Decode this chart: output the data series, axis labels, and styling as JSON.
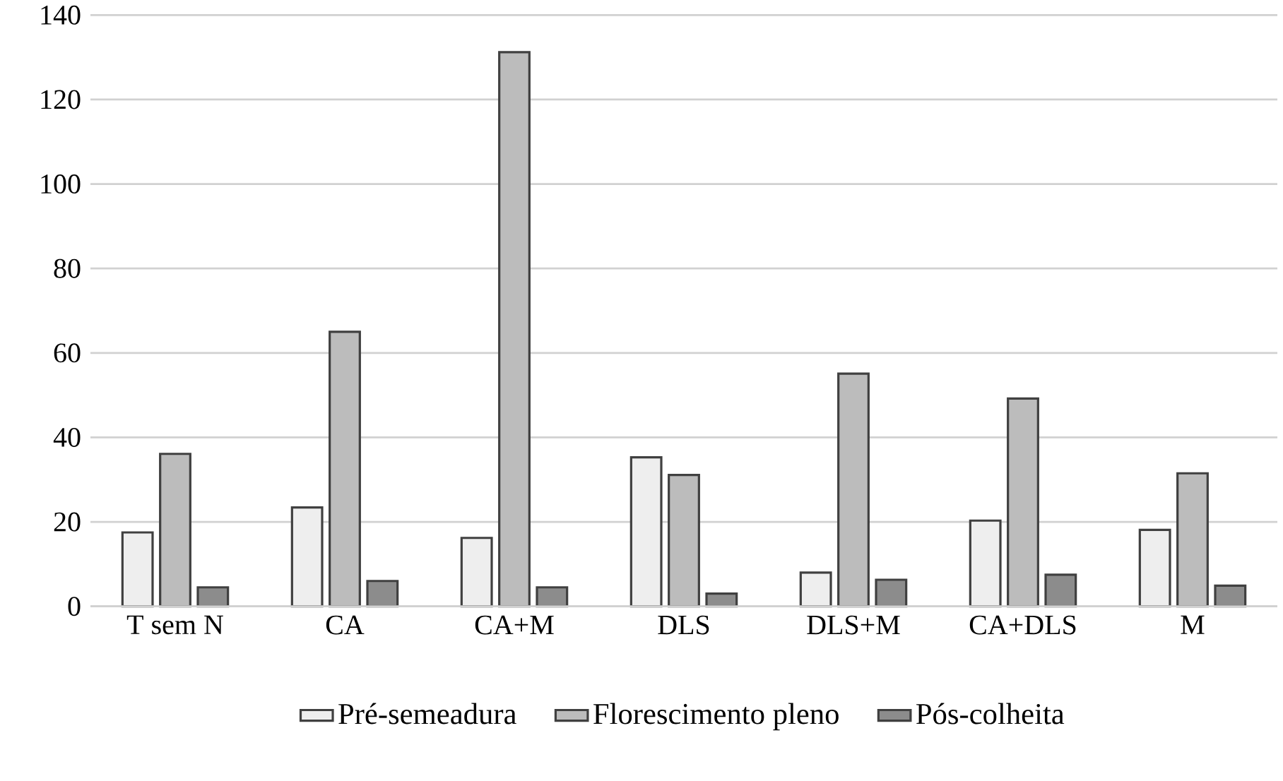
{
  "chart_data": {
    "type": "bar",
    "categories": [
      "T sem N",
      "CA",
      "CA+M",
      "DLS",
      "DLS+M",
      "CA+DLS",
      "M"
    ],
    "series": [
      {
        "name": "Pré-semeadura",
        "color": "#eeeeee",
        "values": [
          17.5,
          23.4,
          16.2,
          35.3,
          8.0,
          20.3,
          18.1
        ]
      },
      {
        "name": "Florescimento pleno",
        "color": "#bcbcbc",
        "values": [
          36.1,
          65.0,
          131.2,
          31.1,
          55.1,
          49.2,
          31.5
        ]
      },
      {
        "name": "Pós-colheita",
        "color": "#8c8c8c",
        "values": [
          4.5,
          6.0,
          4.5,
          3.0,
          6.3,
          7.5,
          4.9
        ]
      }
    ],
    "ylim": [
      0,
      140
    ],
    "yticks": [
      0,
      20,
      40,
      60,
      80,
      100,
      120,
      140
    ],
    "grid": "y",
    "legend": "bottom"
  }
}
